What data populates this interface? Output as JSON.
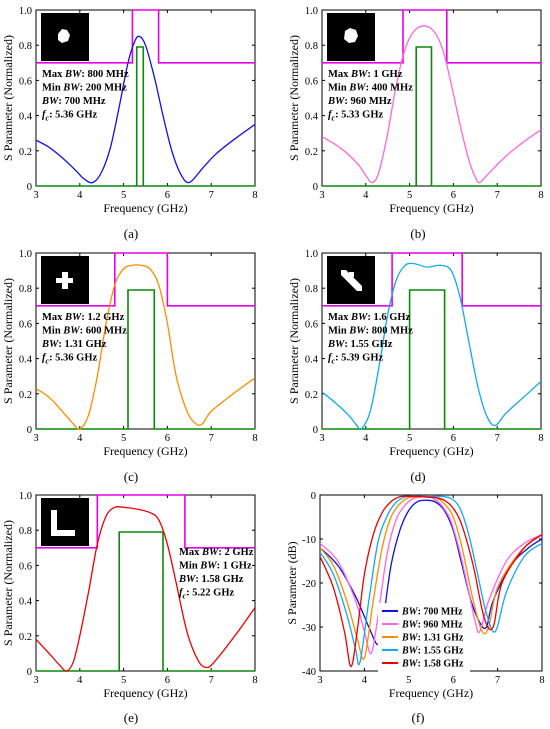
{
  "figure": {
    "panel_labels": [
      "(a)",
      "(b)",
      "(c)",
      "(d)",
      "(e)",
      "(f)"
    ]
  },
  "colors": {
    "mask": "#e800e8",
    "target": "#0a8a0a",
    "a": "#1010e8",
    "b": "#ff66e0",
    "c": "#ff8c00",
    "d": "#14a8f0",
    "e": "#ee0000"
  },
  "chart_data": [
    {
      "panel": "(a)",
      "type": "line",
      "xlabel": "Frequency (GHz)",
      "ylabel": "S Parameter (Normalized)",
      "xlim": [
        3,
        8
      ],
      "ylim": [
        0,
        1
      ],
      "xticks": [
        "3",
        "4",
        "5",
        "6",
        "7",
        "8"
      ],
      "yticks": [
        "0",
        "0.2",
        "0.4",
        "0.6",
        "0.8",
        "1.0"
      ],
      "inset_pattern": "a",
      "annotations": [
        {
          "label": "Max ",
          "label_italic": "",
          "value": "800 MHz",
          "prefix": "Max ",
          "it": "BW",
          "text": ": 800 MHz"
        },
        {
          "prefix": "Min ",
          "it": "BW",
          "text": ": 200 MHz"
        },
        {
          "prefix": "",
          "it": "BW",
          "text": ": 700 MHz"
        },
        {
          "prefix": "",
          "it": "f",
          "sub": "c",
          "text": ": 5.36 GHz"
        }
      ],
      "mask": {
        "x": [
          3,
          5.2,
          5.2,
          5.8,
          5.8,
          8
        ],
        "y": [
          0.7,
          0.7,
          1.0,
          1.0,
          0.7,
          0.7
        ]
      },
      "target": {
        "x": [
          3,
          5.3,
          5.3,
          5.45,
          5.45,
          8
        ],
        "y": [
          0,
          0,
          0.79,
          0.79,
          0,
          0
        ]
      },
      "series": [
        {
          "x": [
            3,
            3.3,
            3.6,
            3.9,
            4.1,
            4.3,
            4.5,
            4.7,
            4.9,
            5.1,
            5.25,
            5.36,
            5.5,
            5.7,
            5.9,
            6.1,
            6.3,
            6.5,
            6.8,
            7.1,
            7.5,
            8
          ],
          "y": [
            0.26,
            0.22,
            0.16,
            0.09,
            0.04,
            0.02,
            0.08,
            0.22,
            0.45,
            0.7,
            0.82,
            0.85,
            0.8,
            0.62,
            0.4,
            0.2,
            0.07,
            0.02,
            0.1,
            0.18,
            0.26,
            0.35
          ]
        }
      ]
    },
    {
      "panel": "(b)",
      "type": "line",
      "xlabel": "Frequency (GHz)",
      "ylabel": "S Parameter (Normalized)",
      "xlim": [
        3,
        8
      ],
      "ylim": [
        0,
        1
      ],
      "xticks": [
        "3",
        "4",
        "5",
        "6",
        "7",
        "8"
      ],
      "yticks": [
        "0",
        "0.2",
        "0.4",
        "0.6",
        "0.8",
        "1.0"
      ],
      "inset_pattern": "b",
      "annotations": [
        {
          "prefix": "Max ",
          "it": "BW",
          "text": ": 1 GHz"
        },
        {
          "prefix": "Min ",
          "it": "BW",
          "text": ": 400 MHz"
        },
        {
          "prefix": "",
          "it": "BW",
          "text": ": 960 MHz"
        },
        {
          "prefix": "",
          "it": "f",
          "sub": "c",
          "text": ": 5.33 GHz"
        }
      ],
      "mask": {
        "x": [
          3,
          4.85,
          4.85,
          5.85,
          5.85,
          8
        ],
        "y": [
          0.7,
          0.7,
          1.0,
          1.0,
          0.7,
          0.7
        ]
      },
      "target": {
        "x": [
          3,
          5.15,
          5.15,
          5.5,
          5.5,
          8
        ],
        "y": [
          0,
          0,
          0.79,
          0.79,
          0,
          0
        ]
      },
      "series": [
        {
          "x": [
            3,
            3.4,
            3.8,
            4.0,
            4.15,
            4.3,
            4.5,
            4.7,
            4.9,
            5.1,
            5.33,
            5.55,
            5.75,
            5.95,
            6.15,
            6.35,
            6.5,
            6.6,
            6.8,
            7.2,
            7.6,
            8
          ],
          "y": [
            0.28,
            0.22,
            0.13,
            0.06,
            0.02,
            0.08,
            0.3,
            0.58,
            0.78,
            0.88,
            0.91,
            0.88,
            0.78,
            0.58,
            0.35,
            0.15,
            0.05,
            0.02,
            0.07,
            0.17,
            0.25,
            0.32
          ]
        }
      ]
    },
    {
      "panel": "(c)",
      "type": "line",
      "xlabel": "Frequency (GHz)",
      "ylabel": "S Parameter (Normalized)",
      "xlim": [
        3,
        8
      ],
      "ylim": [
        0,
        1
      ],
      "xticks": [
        "3",
        "4",
        "5",
        "6",
        "7",
        "8"
      ],
      "yticks": [
        "0",
        "0.2",
        "0.4",
        "0.6",
        "0.8",
        "1.0"
      ],
      "inset_pattern": "c",
      "annotations": [
        {
          "prefix": "Max ",
          "it": "BW",
          "text": ": 1.2 GHz"
        },
        {
          "prefix": "Min ",
          "it": "BW",
          "text": ": 600 MHz"
        },
        {
          "prefix": "",
          "it": "BW",
          "text": ": 1.31 GHz"
        },
        {
          "prefix": "",
          "it": "f",
          "sub": "c",
          "text": ": 5.36 GHz"
        }
      ],
      "mask": {
        "x": [
          3,
          4.8,
          4.8,
          6.0,
          6.0,
          8
        ],
        "y": [
          0.7,
          0.7,
          1.0,
          1.0,
          0.7,
          0.7
        ]
      },
      "target": {
        "x": [
          3,
          5.1,
          5.1,
          5.7,
          5.7,
          8
        ],
        "y": [
          0,
          0,
          0.79,
          0.79,
          0,
          0
        ]
      },
      "series": [
        {
          "x": [
            3,
            3.3,
            3.6,
            3.85,
            4.0,
            4.2,
            4.4,
            4.6,
            4.8,
            5.0,
            5.2,
            5.4,
            5.6,
            5.8,
            6.0,
            6.2,
            6.45,
            6.65,
            6.8,
            7.0,
            7.5,
            8
          ],
          "y": [
            0.23,
            0.18,
            0.1,
            0.03,
            0.0,
            0.08,
            0.3,
            0.6,
            0.82,
            0.91,
            0.93,
            0.93,
            0.91,
            0.82,
            0.6,
            0.3,
            0.1,
            0.03,
            0.03,
            0.1,
            0.2,
            0.29
          ]
        }
      ]
    },
    {
      "panel": "(d)",
      "type": "line",
      "xlabel": "Frequency (GHz)",
      "ylabel": "S Parameter (Normalized)",
      "xlim": [
        3,
        8
      ],
      "ylim": [
        0,
        1
      ],
      "xticks": [
        "3",
        "4",
        "5",
        "6",
        "7",
        "8"
      ],
      "yticks": [
        "0",
        "0.2",
        "0.4",
        "0.6",
        "0.8",
        "1.0"
      ],
      "inset_pattern": "d",
      "annotations": [
        {
          "prefix": "Max ",
          "it": "BW",
          "text": ": 1.6 GHz"
        },
        {
          "prefix": "Min ",
          "it": "BW",
          "text": ": 800 MHz"
        },
        {
          "prefix": "",
          "it": "BW",
          "text": ": 1.55 GHz"
        },
        {
          "prefix": "",
          "it": "f",
          "sub": "c",
          "text": ": 5.39 GHz"
        }
      ],
      "mask": {
        "x": [
          3,
          4.6,
          4.6,
          6.2,
          6.2,
          8
        ],
        "y": [
          0.7,
          0.7,
          1.0,
          1.0,
          0.7,
          0.7
        ]
      },
      "target": {
        "x": [
          3,
          5.0,
          5.0,
          5.8,
          5.8,
          8
        ],
        "y": [
          0,
          0,
          0.79,
          0.79,
          0,
          0
        ]
      },
      "series": [
        {
          "x": [
            3,
            3.3,
            3.6,
            3.8,
            3.9,
            4.1,
            4.3,
            4.5,
            4.7,
            4.9,
            5.1,
            5.4,
            5.7,
            5.95,
            6.15,
            6.35,
            6.55,
            6.75,
            6.95,
            7.2,
            7.6,
            8
          ],
          "y": [
            0.21,
            0.15,
            0.08,
            0.02,
            0.0,
            0.1,
            0.35,
            0.65,
            0.85,
            0.93,
            0.94,
            0.92,
            0.93,
            0.9,
            0.75,
            0.5,
            0.25,
            0.08,
            0.02,
            0.09,
            0.18,
            0.27
          ]
        }
      ]
    },
    {
      "panel": "(e)",
      "type": "line",
      "xlabel": "Frequency (GHz)",
      "ylabel": "S Parameter (Normalized)",
      "xlim": [
        3,
        8
      ],
      "ylim": [
        0,
        1
      ],
      "xticks": [
        "3",
        "4",
        "5",
        "6",
        "7",
        "8"
      ],
      "yticks": [
        "0",
        "0.2",
        "0.4",
        "0.6",
        "0.8",
        "1.0"
      ],
      "inset_pattern": "e",
      "annotations": [
        {
          "prefix": "Max ",
          "it": "BW",
          "text": ": 2 GHz"
        },
        {
          "prefix": "Min ",
          "it": "BW",
          "text": ": 1 GHz"
        },
        {
          "prefix": "",
          "it": "BW",
          "text": ": 1.58 GHz"
        },
        {
          "prefix": "",
          "it": "f",
          "sub": "c",
          "text": ": 5.22 GHz"
        }
      ],
      "mask": {
        "x": [
          3,
          4.4,
          4.4,
          6.4,
          6.4,
          8
        ],
        "y": [
          0.7,
          0.7,
          1.0,
          1.0,
          0.7,
          0.7
        ]
      },
      "target": {
        "x": [
          3,
          4.9,
          4.9,
          5.9,
          5.9,
          8
        ],
        "y": [
          0,
          0,
          0.79,
          0.79,
          0,
          0
        ]
      },
      "series": [
        {
          "x": [
            3,
            3.3,
            3.55,
            3.7,
            3.85,
            4.0,
            4.2,
            4.4,
            4.6,
            4.8,
            5.0,
            5.3,
            5.6,
            5.8,
            6.0,
            6.2,
            6.45,
            6.7,
            6.9,
            7.1,
            7.6,
            8
          ],
          "y": [
            0.18,
            0.1,
            0.03,
            0.0,
            0.05,
            0.2,
            0.45,
            0.72,
            0.88,
            0.93,
            0.93,
            0.92,
            0.9,
            0.86,
            0.72,
            0.5,
            0.22,
            0.06,
            0.02,
            0.06,
            0.22,
            0.36
          ]
        }
      ]
    },
    {
      "panel": "(f)",
      "type": "line",
      "xlabel": "Frequency (GHz)",
      "ylabel": "S Parameter (dB)",
      "xlim": [
        3,
        8
      ],
      "ylim": [
        -40,
        0
      ],
      "xticks": [
        "3",
        "4",
        "5",
        "6",
        "7",
        "8"
      ],
      "yticks": [
        "-40",
        "-30",
        "-20",
        "-10",
        "0"
      ],
      "legend": "bottom-left",
      "legend_entries": [
        {
          "it": "BW",
          "text": ": 700 MHz",
          "color_key": "a"
        },
        {
          "it": "BW",
          "text": ": 960 MHz",
          "color_key": "b"
        },
        {
          "it": "BW",
          "text": ": 1.31 GHz",
          "color_key": "c"
        },
        {
          "it": "BW",
          "text": ": 1.55 GHz",
          "color_key": "d"
        },
        {
          "it": "BW",
          "text": ": 1.58 GHz",
          "color_key": "e"
        }
      ],
      "series": [
        {
          "color_key": "a",
          "x": [
            3,
            3.4,
            3.8,
            4.1,
            4.3,
            4.4,
            4.6,
            4.8,
            5.0,
            5.2,
            5.4,
            5.6,
            5.8,
            6.0,
            6.2,
            6.4,
            6.6,
            6.75,
            6.9,
            7.3,
            7.7,
            8
          ],
          "y": [
            -12,
            -16,
            -23,
            -30,
            -34,
            -30,
            -16,
            -8,
            -3.5,
            -1.5,
            -1.2,
            -1.6,
            -3.5,
            -8,
            -16,
            -24,
            -29,
            -30,
            -24,
            -16,
            -12,
            -10
          ]
        },
        {
          "color_key": "b",
          "x": [
            3,
            3.4,
            3.8,
            4.0,
            4.15,
            4.3,
            4.5,
            4.7,
            4.9,
            5.1,
            5.33,
            5.55,
            5.75,
            5.95,
            6.15,
            6.35,
            6.5,
            6.6,
            6.8,
            7.2,
            7.6,
            8
          ],
          "y": [
            -11,
            -15,
            -24,
            -31,
            -36,
            -28,
            -14,
            -6,
            -2.5,
            -0.8,
            -0.4,
            -0.8,
            -2.5,
            -6,
            -13,
            -22,
            -29,
            -31,
            -24,
            -15,
            -11,
            -9
          ]
        },
        {
          "color_key": "c",
          "x": [
            3,
            3.3,
            3.6,
            3.85,
            4.0,
            4.2,
            4.4,
            4.6,
            4.8,
            5.0,
            5.3,
            5.6,
            5.8,
            6.0,
            6.2,
            6.45,
            6.65,
            6.8,
            7.0,
            7.5,
            8
          ],
          "y": [
            -12,
            -16,
            -24,
            -33,
            -37,
            -24,
            -12,
            -5,
            -2,
            -0.6,
            -0.3,
            -0.6,
            -2,
            -5,
            -12,
            -24,
            -31,
            -30,
            -21,
            -13,
            -9
          ]
        },
        {
          "color_key": "d",
          "x": [
            3,
            3.3,
            3.6,
            3.8,
            3.9,
            4.1,
            4.3,
            4.5,
            4.7,
            4.9,
            5.1,
            5.4,
            5.7,
            5.95,
            6.15,
            6.35,
            6.55,
            6.75,
            6.95,
            7.2,
            7.6,
            8
          ],
          "y": [
            -13,
            -18,
            -27,
            -35,
            -38,
            -24,
            -11,
            -5,
            -1.8,
            -0.5,
            -0.2,
            -0.4,
            -0.3,
            -0.8,
            -3,
            -9,
            -18,
            -27,
            -31,
            -22,
            -14,
            -11
          ]
        },
        {
          "color_key": "e",
          "x": [
            3,
            3.3,
            3.55,
            3.7,
            3.85,
            4.0,
            4.2,
            4.4,
            4.6,
            4.8,
            5.0,
            5.3,
            5.6,
            5.8,
            6.0,
            6.2,
            6.45,
            6.7,
            6.9,
            7.1,
            7.6,
            8
          ],
          "y": [
            -14,
            -21,
            -31,
            -39,
            -30,
            -18,
            -9,
            -4,
            -1.5,
            -0.4,
            -0.3,
            -0.4,
            -0.6,
            -1.2,
            -3,
            -7,
            -16,
            -28,
            -30,
            -20,
            -12,
            -9
          ]
        }
      ]
    }
  ]
}
